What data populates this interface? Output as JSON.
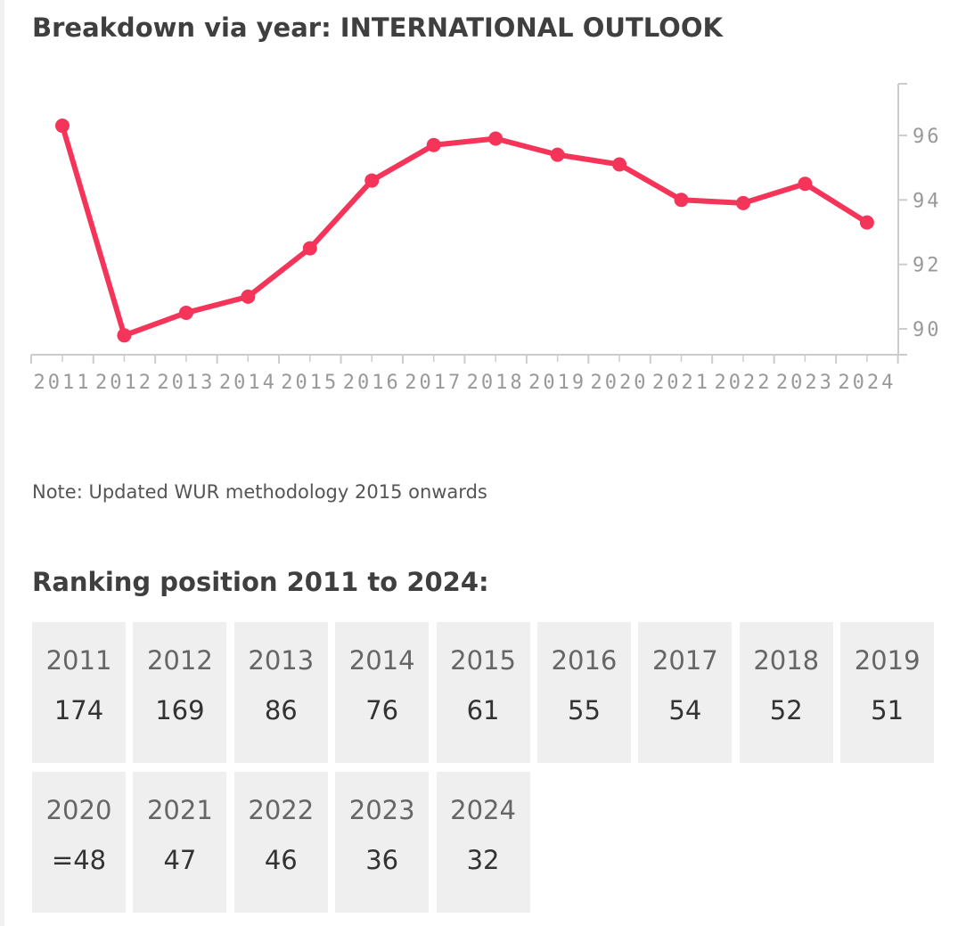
{
  "title": "Breakdown via year: INTERNATIONAL OUTLOOK",
  "note": "Note: Updated WUR methodology 2015 onwards",
  "ranking_title": "Ranking position 2011 to 2024:",
  "rankings": [
    {
      "year": "2011",
      "position": "174"
    },
    {
      "year": "2012",
      "position": "169"
    },
    {
      "year": "2013",
      "position": "86"
    },
    {
      "year": "2014",
      "position": "76"
    },
    {
      "year": "2015",
      "position": "61"
    },
    {
      "year": "2016",
      "position": "55"
    },
    {
      "year": "2017",
      "position": "54"
    },
    {
      "year": "2018",
      "position": "52"
    },
    {
      "year": "2019",
      "position": "51"
    },
    {
      "year": "2020",
      "position": "=48"
    },
    {
      "year": "2021",
      "position": "47"
    },
    {
      "year": "2022",
      "position": "46"
    },
    {
      "year": "2023",
      "position": "36"
    },
    {
      "year": "2024",
      "position": "32"
    }
  ],
  "chart_data": {
    "type": "line",
    "title": "Breakdown via year: INTERNATIONAL OUTLOOK",
    "x": [
      "2011",
      "2012",
      "2013",
      "2014",
      "2015",
      "2016",
      "2017",
      "2018",
      "2019",
      "2020",
      "2021",
      "2022",
      "2023",
      "2024"
    ],
    "series": [
      {
        "values": [
          96.3,
          89.8,
          90.5,
          91.0,
          92.5,
          94.6,
          95.7,
          95.9,
          95.4,
          95.1,
          94.0,
          93.9,
          94.5,
          93.3
        ]
      }
    ],
    "y_ticks": [
      90,
      92,
      94,
      96
    ],
    "ylim": [
      89.2,
      97.6
    ],
    "y_axis_side": "right",
    "grid": false,
    "line_color": "#f5345a",
    "axis_color": "#cccccc",
    "tick_label_color": "#999999"
  }
}
